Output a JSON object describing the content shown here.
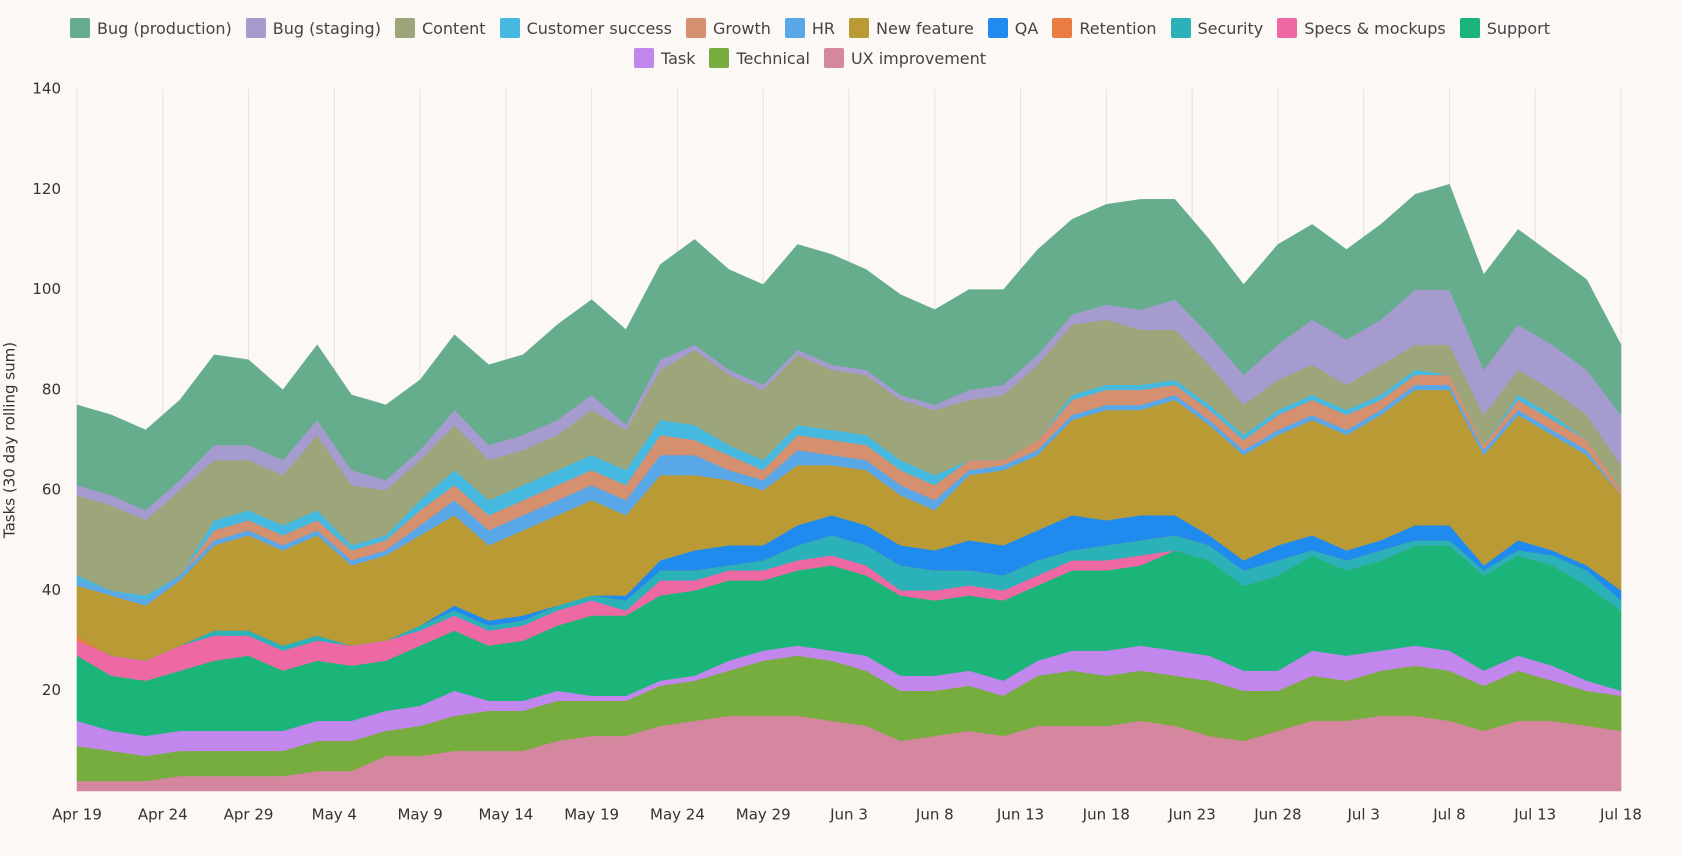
{
  "chart_data": {
    "type": "stacked_area",
    "y_label": "Tasks (30 day rolling sum)",
    "x": [
      "Apr 19",
      "Apr 21",
      "Apr 23",
      "Apr 25",
      "Apr 27",
      "Apr 29",
      "May 1",
      "May 3",
      "May 5",
      "May 7",
      "May 9",
      "May 11",
      "May 13",
      "May 15",
      "May 17",
      "May 19",
      "May 21",
      "May 23",
      "May 25",
      "May 27",
      "May 29",
      "May 31",
      "Jun 2",
      "Jun 4",
      "Jun 6",
      "Jun 8",
      "Jun 10",
      "Jun 12",
      "Jun 14",
      "Jun 16",
      "Jun 18",
      "Jun 20",
      "Jun 22",
      "Jun 24",
      "Jun 26",
      "Jun 28",
      "Jun 30",
      "Jul 2",
      "Jul 4",
      "Jul 6",
      "Jul 8",
      "Jul 10",
      "Jul 12",
      "Jul 14",
      "Jul 16",
      "Jul 18"
    ],
    "xlim": [
      "Apr 19",
      "Jul 18"
    ],
    "xticks": [
      "Apr 19",
      "Apr 24",
      "Apr 29",
      "May 4",
      "May 9",
      "May 14",
      "May 19",
      "May 24",
      "May 29",
      "Jun 3",
      "Jun 8",
      "Jun 13",
      "Jun 18",
      "Jun 23",
      "Jun 28",
      "Jul 3",
      "Jul 8",
      "Jul 13",
      "Jul 18"
    ],
    "ylim": [
      0,
      140
    ],
    "yticks": [
      20,
      40,
      60,
      80,
      100,
      120,
      140
    ],
    "grid": true,
    "legend": "top",
    "series": [
      {
        "name": "Bug (production)",
        "color": "#66ad8e",
        "values": [
          16,
          16,
          16,
          16,
          18,
          17,
          14,
          15,
          15,
          15,
          14,
          15,
          16,
          16,
          19,
          19,
          19,
          19,
          21,
          20,
          20,
          21,
          22,
          20,
          20,
          19,
          20,
          19,
          21,
          19,
          20,
          22,
          20,
          19,
          18,
          20,
          19,
          18,
          19,
          19,
          21,
          19,
          19,
          18,
          18,
          14
        ]
      },
      {
        "name": "Bug (staging)",
        "color": "#a59bcf",
        "values": [
          2,
          2,
          2,
          2,
          3,
          3,
          3,
          3,
          3,
          2,
          2,
          3,
          3,
          3,
          3,
          3,
          1,
          2,
          1,
          1,
          1,
          1,
          1,
          1,
          1,
          1,
          2,
          2,
          2,
          2,
          3,
          4,
          6,
          6,
          6,
          7,
          9,
          9,
          9,
          11,
          11,
          9,
          9,
          9,
          9,
          10
        ]
      },
      {
        "name": "Content",
        "color": "#9da57a",
        "values": [
          16,
          17,
          15,
          17,
          12,
          10,
          10,
          15,
          12,
          9,
          8,
          9,
          8,
          7,
          7,
          9,
          8,
          10,
          15,
          14,
          14,
          14,
          12,
          12,
          12,
          13,
          12,
          13,
          15,
          14,
          13,
          11,
          10,
          8,
          6,
          6,
          6,
          5,
          6,
          5,
          6,
          6,
          5,
          5,
          5,
          5
        ]
      },
      {
        "name": "Customer success",
        "color": "#45b9e0",
        "values": [
          1,
          0,
          1,
          0,
          2,
          2,
          2,
          2,
          1,
          1,
          2,
          3,
          3,
          3,
          3,
          3,
          3,
          3,
          3,
          2,
          2,
          2,
          2,
          2,
          2,
          2,
          0,
          0,
          0,
          1,
          1,
          1,
          1,
          1,
          1,
          1,
          1,
          1,
          1,
          1,
          0,
          0,
          1,
          1,
          0,
          0
        ]
      },
      {
        "name": "Growth",
        "color": "#d4906f",
        "values": [
          0,
          0,
          0,
          0,
          2,
          2,
          2,
          2,
          2,
          2,
          3,
          3,
          3,
          3,
          3,
          3,
          3,
          4,
          3,
          3,
          2,
          3,
          3,
          3,
          3,
          3,
          2,
          1,
          2,
          3,
          3,
          3,
          2,
          2,
          2,
          3,
          3,
          3,
          2,
          2,
          2,
          1,
          2,
          2,
          2,
          1
        ]
      },
      {
        "name": "HR",
        "color": "#5aa7e8",
        "values": [
          1,
          1,
          1,
          1,
          1,
          1,
          1,
          1,
          1,
          1,
          2,
          3,
          3,
          3,
          3,
          3,
          3,
          4,
          4,
          2,
          2,
          3,
          2,
          2,
          2,
          2,
          1,
          1,
          1,
          1,
          1,
          1,
          1,
          1,
          1,
          1,
          1,
          1,
          1,
          1,
          1,
          1,
          1,
          1,
          1,
          0
        ]
      },
      {
        "name": "New feature",
        "color": "#b99a35",
        "values": [
          10,
          12,
          11,
          13,
          17,
          19,
          19,
          20,
          16,
          17,
          18,
          18,
          15,
          17,
          18,
          19,
          16,
          17,
          15,
          13,
          11,
          12,
          10,
          11,
          10,
          8,
          13,
          15,
          15,
          19,
          22,
          21,
          23,
          22,
          21,
          22,
          23,
          23,
          25,
          27,
          27,
          22,
          25,
          23,
          22,
          19
        ]
      },
      {
        "name": "QA",
        "color": "#1f8bef",
        "values": [
          0,
          0,
          0,
          0,
          0,
          0,
          0,
          0,
          0,
          0,
          0,
          1,
          1,
          1,
          0,
          0,
          1,
          2,
          4,
          4,
          3,
          4,
          4,
          4,
          4,
          4,
          6,
          6,
          6,
          7,
          5,
          5,
          4,
          2,
          2,
          3,
          3,
          2,
          2,
          3,
          3,
          1,
          2,
          1,
          1,
          2
        ]
      },
      {
        "name": "Retention",
        "color": "#ea7b41",
        "values": [
          1,
          0,
          0,
          0,
          0,
          0,
          0,
          0,
          0,
          0,
          0,
          0,
          0,
          0,
          0,
          0,
          0,
          0,
          0,
          0,
          0,
          0,
          0,
          0,
          0,
          0,
          0,
          0,
          0,
          0,
          0,
          0,
          0,
          0,
          0,
          0,
          0,
          0,
          0,
          0,
          0,
          0,
          0,
          0,
          0,
          0
        ]
      },
      {
        "name": "Security",
        "color": "#2bb2b8",
        "values": [
          0,
          0,
          0,
          0,
          1,
          1,
          1,
          1,
          0,
          0,
          1,
          1,
          1,
          1,
          1,
          1,
          2,
          2,
          2,
          1,
          2,
          3,
          4,
          4,
          5,
          4,
          3,
          3,
          3,
          2,
          3,
          3,
          3,
          3,
          3,
          3,
          1,
          2,
          2,
          1,
          1,
          1,
          1,
          2,
          3,
          2
        ]
      },
      {
        "name": "Specs & mockups",
        "color": "#ee68a4",
        "values": [
          3,
          4,
          4,
          5,
          5,
          4,
          4,
          4,
          4,
          4,
          3,
          3,
          3,
          3,
          3,
          3,
          1,
          3,
          2,
          2,
          2,
          2,
          2,
          2,
          1,
          2,
          2,
          2,
          2,
          2,
          2,
          2,
          0,
          0,
          0,
          0,
          0,
          0,
          0,
          0,
          0,
          0,
          0,
          0,
          0,
          0
        ]
      },
      {
        "name": "Support",
        "color": "#1bb57a",
        "values": [
          13,
          11,
          11,
          12,
          14,
          15,
          12,
          12,
          11,
          10,
          12,
          12,
          11,
          12,
          13,
          16,
          16,
          17,
          17,
          16,
          14,
          15,
          17,
          16,
          16,
          15,
          15,
          16,
          15,
          16,
          16,
          16,
          20,
          19,
          17,
          19,
          19,
          17,
          18,
          20,
          21,
          19,
          20,
          20,
          19,
          16
        ]
      },
      {
        "name": "Task",
        "color": "#c287ec",
        "values": [
          5,
          4,
          4,
          4,
          4,
          4,
          4,
          4,
          4,
          4,
          4,
          5,
          2,
          2,
          2,
          1,
          1,
          1,
          1,
          2,
          2,
          2,
          2,
          3,
          3,
          3,
          3,
          3,
          3,
          4,
          5,
          5,
          5,
          5,
          4,
          4,
          5,
          5,
          4,
          4,
          4,
          3,
          3,
          3,
          2,
          1
        ]
      },
      {
        "name": "Technical",
        "color": "#77ac3f",
        "values": [
          7,
          6,
          5,
          5,
          5,
          5,
          5,
          6,
          6,
          5,
          6,
          7,
          8,
          8,
          8,
          7,
          7,
          8,
          8,
          9,
          11,
          12,
          12,
          11,
          10,
          9,
          9,
          8,
          10,
          11,
          10,
          10,
          10,
          11,
          10,
          8,
          9,
          8,
          9,
          10,
          10,
          9,
          10,
          8,
          7,
          7
        ]
      },
      {
        "name": "UX improvement",
        "color": "#d4879f",
        "values": [
          2,
          2,
          2,
          3,
          3,
          3,
          3,
          4,
          4,
          7,
          7,
          8,
          8,
          8,
          10,
          11,
          11,
          13,
          14,
          15,
          15,
          15,
          14,
          13,
          10,
          11,
          12,
          11,
          13,
          13,
          13,
          14,
          13,
          11,
          10,
          12,
          14,
          14,
          15,
          15,
          14,
          12,
          14,
          14,
          13,
          12
        ]
      }
    ]
  }
}
